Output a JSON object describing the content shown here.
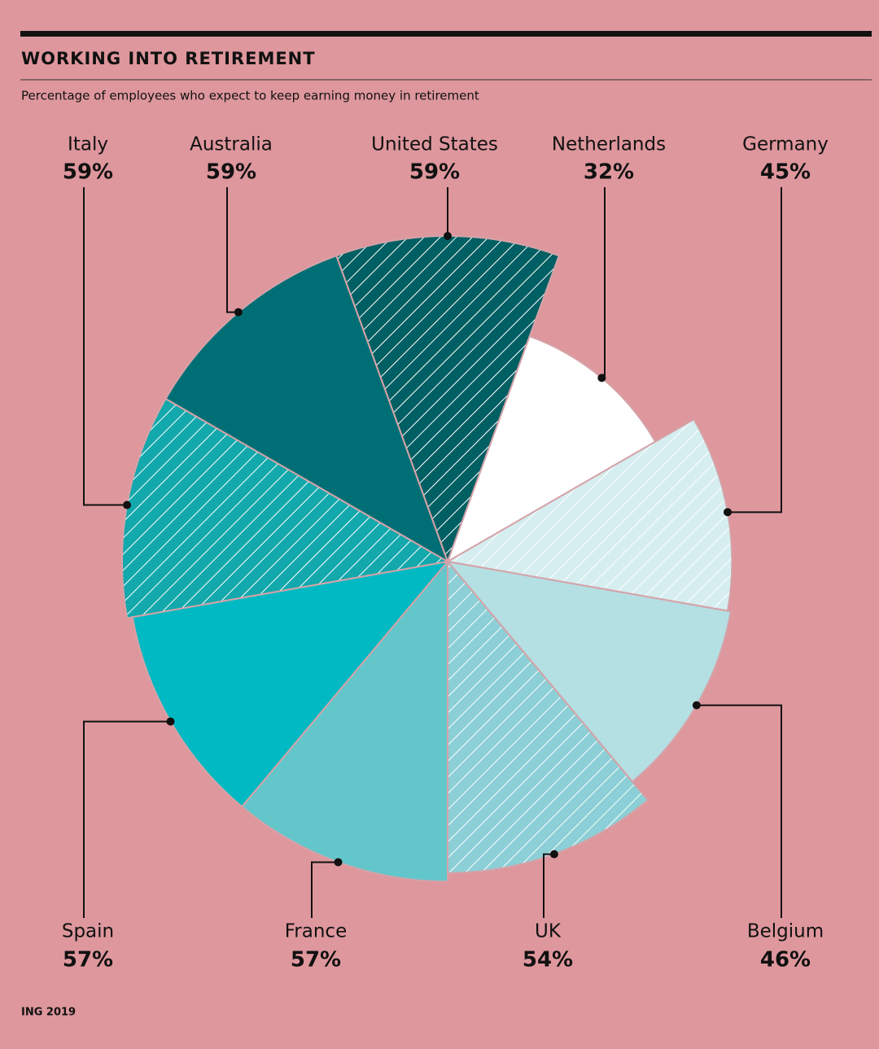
{
  "chart_data": {
    "type": "polar-area",
    "title": "WORKING INTO RETIREMENT",
    "subtitle": "Percentage of employees who expect to keep earning money in retirement",
    "source": "ING 2019",
    "categories": [
      "United States",
      "Netherlands",
      "Germany",
      "Belgium",
      "UK",
      "France",
      "Spain",
      "Italy",
      "Australia"
    ],
    "values": [
      59,
      32,
      45,
      46,
      54,
      57,
      57,
      59,
      59
    ],
    "value_labels": [
      "59%",
      "32%",
      "45%",
      "46%",
      "54%",
      "57%",
      "57%",
      "59%",
      "59%"
    ],
    "colors": [
      "#005f63",
      "#ffffff",
      "#d6eef0",
      "#b4dfe3",
      "#8ccfd6",
      "#63c6cb",
      "#00b9c2",
      "#12a8ac",
      "#006f75"
    ],
    "hatched": [
      true,
      false,
      true,
      false,
      true,
      false,
      false,
      true,
      false
    ]
  }
}
